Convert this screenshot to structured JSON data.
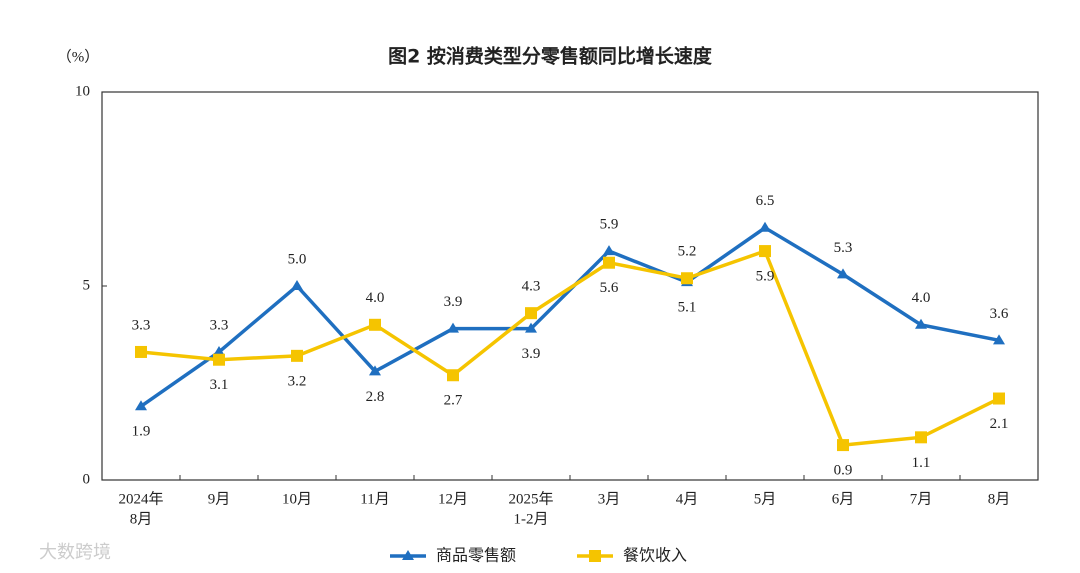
{
  "chart_data": {
    "type": "line",
    "title": "图2  按消费类型分零售额同比增长速度",
    "y_label": "（%）",
    "watermark": "大数跨境",
    "categories": [
      [
        "2024年",
        "8月"
      ],
      [
        "9月"
      ],
      [
        "10月"
      ],
      [
        "11月"
      ],
      [
        "12月"
      ],
      [
        "2025年",
        "1-2月"
      ],
      [
        "3月"
      ],
      [
        "4月"
      ],
      [
        "5月"
      ],
      [
        "6月"
      ],
      [
        "7月"
      ],
      [
        "8月"
      ]
    ],
    "ylim": [
      0,
      10
    ],
    "yticks": [
      0,
      5,
      10
    ],
    "series": [
      {
        "name": "商品零售额",
        "color": "#1f6fc0",
        "marker": "triangle",
        "values": [
          1.9,
          3.3,
          5.0,
          2.8,
          3.9,
          3.9,
          5.9,
          5.1,
          6.5,
          5.3,
          4.0,
          3.6
        ],
        "value_labels": [
          "1.9",
          "3.3",
          "5.0",
          "2.8",
          "3.9",
          "3.9",
          "5.9",
          "5.1",
          "6.5",
          "5.3",
          "4.0",
          "3.6"
        ]
      },
      {
        "name": "餐饮收入",
        "color": "#f5c400",
        "marker": "square",
        "values": [
          3.3,
          3.1,
          3.2,
          4.0,
          2.7,
          4.3,
          5.6,
          5.2,
          5.9,
          0.9,
          1.1,
          2.1
        ],
        "value_labels": [
          "3.3",
          "3.1",
          "3.2",
          "4.0",
          "2.7",
          "4.3",
          "5.6",
          "5.2",
          "5.9",
          "0.9",
          "1.1",
          "2.1"
        ]
      }
    ]
  }
}
